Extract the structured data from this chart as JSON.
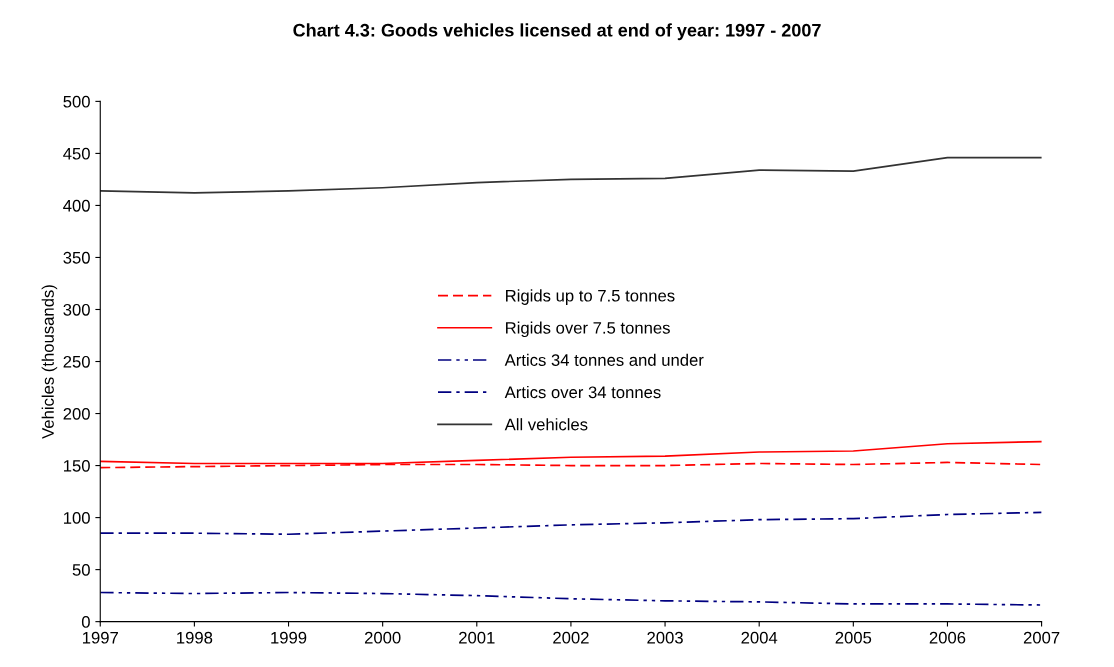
{
  "chart_data": {
    "type": "line",
    "title": "Chart 4.3: Goods vehicles licensed at end of year: 1997 - 2007",
    "ylabel": "Vehicles (thousands)",
    "x": [
      1997,
      1998,
      1999,
      2000,
      2001,
      2002,
      2003,
      2004,
      2005,
      2006,
      2007
    ],
    "series": [
      {
        "name": "Rigids up to 7.5 tonnes",
        "color": "#ff0000",
        "line_style": "dashed",
        "values": [
          148,
          149,
          150,
          151,
          151,
          150,
          150,
          152,
          151,
          153,
          151
        ]
      },
      {
        "name": "Rigids over 7.5 tonnes",
        "color": "#ff0000",
        "line_style": "solid",
        "values": [
          154,
          152,
          152,
          152,
          155,
          158,
          159,
          163,
          164,
          171,
          173
        ]
      },
      {
        "name": "Artics 34 tonnes and under",
        "color": "#000080",
        "line_style": "dashdotdot",
        "values": [
          28,
          27,
          28,
          27,
          25,
          22,
          20,
          19,
          17,
          17,
          16
        ]
      },
      {
        "name": "Artics over 34 tonnes",
        "color": "#000080",
        "line_style": "dashdot",
        "values": [
          85,
          85,
          84,
          87,
          90,
          93,
          95,
          98,
          99,
          103,
          105
        ]
      },
      {
        "name": "All vehicles",
        "color": "#333333",
        "line_style": "solid",
        "values": [
          414,
          412,
          414,
          417,
          422,
          425,
          426,
          434,
          433,
          446,
          446
        ]
      }
    ],
    "xlim": [
      1997,
      2007
    ],
    "xticks": [
      1997,
      1998,
      1999,
      2000,
      2001,
      2002,
      2003,
      2004,
      2005,
      2006,
      2007
    ],
    "ylim": [
      0,
      500
    ],
    "yticks": [
      0,
      50,
      100,
      150,
      200,
      250,
      300,
      350,
      400,
      450,
      500
    ],
    "grid": false,
    "legend": "center",
    "marker": "none"
  }
}
